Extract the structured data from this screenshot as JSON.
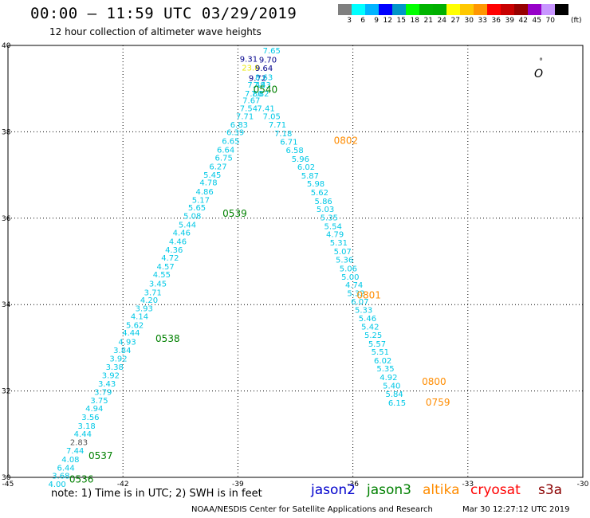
{
  "header": {
    "title": "00:00 – 11:59 UTC 03/29/2019",
    "subtitle": "12 hour collection of altimeter wave heights"
  },
  "colorbar": {
    "colors": [
      "#7f7f7f",
      "#00ffff",
      "#00b4ff",
      "#0000ff",
      "#0096c8",
      "#00ff00",
      "#00b400",
      "#00af00",
      "#ffff00",
      "#ffc800",
      "#ff9600",
      "#ff0000",
      "#c80000",
      "#960000",
      "#9600c8",
      "#c896ff",
      "#000000"
    ],
    "labels": [
      "3",
      "6",
      "9",
      "12",
      "15",
      "18",
      "21",
      "24",
      "27",
      "30",
      "33",
      "36",
      "39",
      "42",
      "45",
      "70"
    ],
    "unit": "(ft)"
  },
  "map": {
    "lon_ticks": [
      "-45",
      "-42",
      "-39",
      "-36",
      "-33",
      "-30"
    ],
    "lat_ticks": [
      "40",
      "38",
      "36",
      "34",
      "32",
      "30"
    ],
    "coast_symbols": [
      "°",
      "O"
    ]
  },
  "chart_data": {
    "type": "scatter",
    "xlim": [
      -45,
      -30
    ],
    "ylim": [
      30,
      40
    ],
    "track_west_wave_heights": [
      {
        "lon": -38.95,
        "lat": 39.62,
        "v": "9.31",
        "c": "#00008b"
      },
      {
        "lon": -38.9,
        "lat": 39.42,
        "v": "23.8",
        "c": "#e8e800"
      },
      {
        "lon": -38.72,
        "lat": 39.18,
        "v": "9.72",
        "c": "#00008b"
      },
      {
        "lon": -38.75,
        "lat": 39.02,
        "v": "7.48",
        "c": "#00c8e6"
      },
      {
        "lon": -38.82,
        "lat": 38.82,
        "v": "7.86",
        "c": "#00c8e6"
      },
      {
        "lon": -38.88,
        "lat": 38.66,
        "v": "7.67",
        "c": "#00c8e6"
      },
      {
        "lon": -38.95,
        "lat": 38.48,
        "v": "7.54",
        "c": "#00c8e6"
      },
      {
        "lon": -39.05,
        "lat": 38.29,
        "v": "7.71",
        "c": "#00c8e6"
      },
      {
        "lon": -39.2,
        "lat": 38.1,
        "v": "6.83",
        "c": "#00c8e6"
      },
      {
        "lon": -39.3,
        "lat": 37.92,
        "v": "6.39",
        "c": "#00c8e6"
      },
      {
        "lon": -39.42,
        "lat": 37.72,
        "v": "6.65",
        "c": "#00c8e6"
      },
      {
        "lon": -39.55,
        "lat": 37.52,
        "v": "6.64",
        "c": "#00c8e6"
      },
      {
        "lon": -39.6,
        "lat": 37.33,
        "v": "6.75",
        "c": "#00c8e6"
      },
      {
        "lon": -39.75,
        "lat": 37.13,
        "v": "6.27",
        "c": "#00c8e6"
      },
      {
        "lon": -39.9,
        "lat": 36.94,
        "v": "5.45",
        "c": "#00c8e6"
      },
      {
        "lon": -40.0,
        "lat": 36.76,
        "v": "4.78",
        "c": "#00c8e6"
      },
      {
        "lon": -40.1,
        "lat": 36.55,
        "v": "4.86",
        "c": "#00c8e6"
      },
      {
        "lon": -40.2,
        "lat": 36.36,
        "v": "5.17",
        "c": "#00c8e6"
      },
      {
        "lon": -40.3,
        "lat": 36.18,
        "v": "5.65",
        "c": "#00c8e6"
      },
      {
        "lon": -40.42,
        "lat": 35.99,
        "v": "5.08",
        "c": "#00c8e6"
      },
      {
        "lon": -40.55,
        "lat": 35.78,
        "v": "5.44",
        "c": "#00c8e6"
      },
      {
        "lon": -40.7,
        "lat": 35.6,
        "v": "4.46",
        "c": "#00c8e6"
      },
      {
        "lon": -40.8,
        "lat": 35.4,
        "v": "4.46",
        "c": "#00c8e6"
      },
      {
        "lon": -40.9,
        "lat": 35.2,
        "v": "4.36",
        "c": "#00c8e6"
      },
      {
        "lon": -41.0,
        "lat": 35.02,
        "v": "4.72",
        "c": "#00c8e6"
      },
      {
        "lon": -41.12,
        "lat": 34.82,
        "v": "4.57",
        "c": "#00c8e6"
      },
      {
        "lon": -41.22,
        "lat": 34.63,
        "v": "4.55",
        "c": "#00c8e6"
      },
      {
        "lon": -41.32,
        "lat": 34.42,
        "v": "3.45",
        "c": "#00c8e6"
      },
      {
        "lon": -41.45,
        "lat": 34.22,
        "v": "3.71",
        "c": "#00c8e6"
      },
      {
        "lon": -41.55,
        "lat": 34.04,
        "v": "4.20",
        "c": "#00c8e6"
      },
      {
        "lon": -41.68,
        "lat": 33.85,
        "v": "3.93",
        "c": "#00c8e6"
      },
      {
        "lon": -41.8,
        "lat": 33.66,
        "v": "4.14",
        "c": "#00c8e6"
      },
      {
        "lon": -41.92,
        "lat": 33.46,
        "v": "5.62",
        "c": "#00c8e6"
      },
      {
        "lon": -42.02,
        "lat": 33.28,
        "v": "4.44",
        "c": "#00c8e6"
      },
      {
        "lon": -42.12,
        "lat": 33.07,
        "v": "4.93",
        "c": "#00c8e6"
      },
      {
        "lon": -42.25,
        "lat": 32.88,
        "v": "3.84",
        "c": "#00c8e6"
      },
      {
        "lon": -42.35,
        "lat": 32.68,
        "v": "3.92",
        "c": "#00c8e6"
      },
      {
        "lon": -42.45,
        "lat": 32.49,
        "v": "3.38",
        "c": "#00c8e6"
      },
      {
        "lon": -42.55,
        "lat": 32.3,
        "v": "3.92",
        "c": "#00c8e6"
      },
      {
        "lon": -42.65,
        "lat": 32.1,
        "v": "3.43",
        "c": "#00c8e6"
      },
      {
        "lon": -42.75,
        "lat": 31.91,
        "v": "3.79",
        "c": "#00c8e6"
      },
      {
        "lon": -42.85,
        "lat": 31.72,
        "v": "3.75",
        "c": "#00c8e6"
      },
      {
        "lon": -42.98,
        "lat": 31.53,
        "v": "4.94",
        "c": "#00c8e6"
      },
      {
        "lon": -43.08,
        "lat": 31.33,
        "v": "3.56",
        "c": "#00c8e6"
      },
      {
        "lon": -43.18,
        "lat": 31.13,
        "v": "3.18",
        "c": "#00c8e6"
      },
      {
        "lon": -43.28,
        "lat": 30.94,
        "v": "4.44",
        "c": "#00c8e6"
      },
      {
        "lon": -43.38,
        "lat": 30.75,
        "v": "2.83",
        "c": "#555555"
      },
      {
        "lon": -43.48,
        "lat": 30.55,
        "v": "7.44",
        "c": "#00c8e6"
      },
      {
        "lon": -43.6,
        "lat": 30.35,
        "v": "4.08",
        "c": "#00c8e6"
      },
      {
        "lon": -43.72,
        "lat": 30.16,
        "v": "6.44",
        "c": "#00c8e6"
      },
      {
        "lon": -43.85,
        "lat": 29.97,
        "v": "3.68",
        "c": "#00c8e6"
      },
      {
        "lon": -43.95,
        "lat": 29.78,
        "v": "4.00",
        "c": "#00c8e6"
      }
    ],
    "track_east_wave_heights": [
      {
        "lon": -38.35,
        "lat": 39.82,
        "v": "7.65",
        "c": "#00c8e6"
      },
      {
        "lon": -38.45,
        "lat": 39.6,
        "v": "9.70",
        "c": "#00008b"
      },
      {
        "lon": -38.55,
        "lat": 39.41,
        "v": "9.64",
        "c": "#00008b"
      },
      {
        "lon": -38.55,
        "lat": 39.2,
        "v": "8.63",
        "c": "#00c8e6"
      },
      {
        "lon": -38.6,
        "lat": 39.02,
        "v": "7.43",
        "c": "#00c8e6"
      },
      {
        "lon": -38.65,
        "lat": 38.82,
        "v": "7.82",
        "c": "#00c8e6"
      },
      {
        "lon": -38.5,
        "lat": 38.48,
        "v": "7.41",
        "c": "#00c8e6"
      },
      {
        "lon": -38.35,
        "lat": 38.29,
        "v": "7.05",
        "c": "#00c8e6"
      },
      {
        "lon": -38.2,
        "lat": 38.1,
        "v": "7.71",
        "c": "#00c8e6"
      },
      {
        "lon": -38.05,
        "lat": 37.9,
        "v": "7.18",
        "c": "#00c8e6"
      },
      {
        "lon": -37.9,
        "lat": 37.7,
        "v": "6.71",
        "c": "#00c8e6"
      },
      {
        "lon": -37.75,
        "lat": 37.51,
        "v": "6.58",
        "c": "#00c8e6"
      },
      {
        "lon": -37.6,
        "lat": 37.31,
        "v": "5.96",
        "c": "#00c8e6"
      },
      {
        "lon": -37.45,
        "lat": 37.12,
        "v": "6.02",
        "c": "#00c8e6"
      },
      {
        "lon": -37.35,
        "lat": 36.92,
        "v": "5.87",
        "c": "#00c8e6"
      },
      {
        "lon": -37.2,
        "lat": 36.73,
        "v": "5.98",
        "c": "#00c8e6"
      },
      {
        "lon": -37.1,
        "lat": 36.53,
        "v": "5.62",
        "c": "#00c8e6"
      },
      {
        "lon": -37.0,
        "lat": 36.33,
        "v": "5.86",
        "c": "#00c8e6"
      },
      {
        "lon": -36.95,
        "lat": 36.14,
        "v": "5.03",
        "c": "#00c8e6"
      },
      {
        "lon": -36.85,
        "lat": 35.95,
        "v": "5.35",
        "c": "#00c8e6"
      },
      {
        "lon": -36.75,
        "lat": 35.75,
        "v": "5.54",
        "c": "#00c8e6"
      },
      {
        "lon": -36.7,
        "lat": 35.56,
        "v": "4.79",
        "c": "#00c8e6"
      },
      {
        "lon": -36.6,
        "lat": 35.37,
        "v": "5.31",
        "c": "#00c8e6"
      },
      {
        "lon": -36.5,
        "lat": 35.17,
        "v": "5.07",
        "c": "#00c8e6"
      },
      {
        "lon": -36.45,
        "lat": 34.97,
        "v": "5.36",
        "c": "#00c8e6"
      },
      {
        "lon": -36.35,
        "lat": 34.77,
        "v": "5.06",
        "c": "#00c8e6"
      },
      {
        "lon": -36.3,
        "lat": 34.58,
        "v": "5.00",
        "c": "#00c8e6"
      },
      {
        "lon": -36.2,
        "lat": 34.39,
        "v": "4.74",
        "c": "#00c8e6"
      },
      {
        "lon": -36.15,
        "lat": 34.2,
        "v": "5.32",
        "c": "#00c8e6"
      },
      {
        "lon": -36.05,
        "lat": 34.0,
        "v": "6.07",
        "c": "#00c8e6"
      },
      {
        "lon": -35.95,
        "lat": 33.81,
        "v": "5.33",
        "c": "#00c8e6"
      },
      {
        "lon": -35.85,
        "lat": 33.62,
        "v": "5.46",
        "c": "#00c8e6"
      },
      {
        "lon": -35.78,
        "lat": 33.42,
        "v": "5.42",
        "c": "#00c8e6"
      },
      {
        "lon": -35.7,
        "lat": 33.23,
        "v": "5.25",
        "c": "#00c8e6"
      },
      {
        "lon": -35.6,
        "lat": 33.03,
        "v": "5.57",
        "c": "#00c8e6"
      },
      {
        "lon": -35.52,
        "lat": 32.84,
        "v": "5.51",
        "c": "#00c8e6"
      },
      {
        "lon": -35.45,
        "lat": 32.64,
        "v": "6.02",
        "c": "#00c8e6"
      },
      {
        "lon": -35.38,
        "lat": 32.45,
        "v": "5.35",
        "c": "#00c8e6"
      },
      {
        "lon": -35.3,
        "lat": 32.25,
        "v": "4.92",
        "c": "#00c8e6"
      },
      {
        "lon": -35.22,
        "lat": 32.06,
        "v": "5.40",
        "c": "#00c8e6"
      },
      {
        "lon": -35.15,
        "lat": 31.86,
        "v": "5.84",
        "c": "#00c8e6"
      },
      {
        "lon": -35.08,
        "lat": 31.66,
        "v": "6.15",
        "c": "#00c8e6"
      }
    ],
    "time_labels": [
      {
        "lon": -38.6,
        "lat": 38.9,
        "v": "0540",
        "c": "#008000"
      },
      {
        "lon": -36.5,
        "lat": 37.72,
        "v": "0802",
        "c": "#ff8c00"
      },
      {
        "lon": -39.4,
        "lat": 36.03,
        "v": "0539",
        "c": "#008000"
      },
      {
        "lon": -35.9,
        "lat": 34.14,
        "v": "0801",
        "c": "#ff8c00"
      },
      {
        "lon": -41.15,
        "lat": 33.14,
        "v": "0538",
        "c": "#008000"
      },
      {
        "lon": -34.2,
        "lat": 32.14,
        "v": "0800",
        "c": "#ff8c00"
      },
      {
        "lon": -42.9,
        "lat": 30.42,
        "v": "0537",
        "c": "#008000"
      },
      {
        "lon": -34.1,
        "lat": 31.66,
        "v": "0759",
        "c": "#ff8c00"
      },
      {
        "lon": -43.4,
        "lat": 29.88,
        "v": "0536",
        "c": "#008000"
      }
    ]
  },
  "note": "note:  1) Time is in UTC;  2) SWH is in feet",
  "satellites": [
    {
      "name": "jason2",
      "color": "#0000cd"
    },
    {
      "name": "jason3",
      "color": "#008000"
    },
    {
      "name": "altika",
      "color": "#ff8c00"
    },
    {
      "name": "cryosat",
      "color": "#ff0000"
    },
    {
      "name": "s3a",
      "color": "#8b0000"
    }
  ],
  "footer": {
    "left": "NOAA/NESDIS Center for Satellite Applications and Research",
    "right": "Mar 30 12:27:12 UTC 2019"
  }
}
